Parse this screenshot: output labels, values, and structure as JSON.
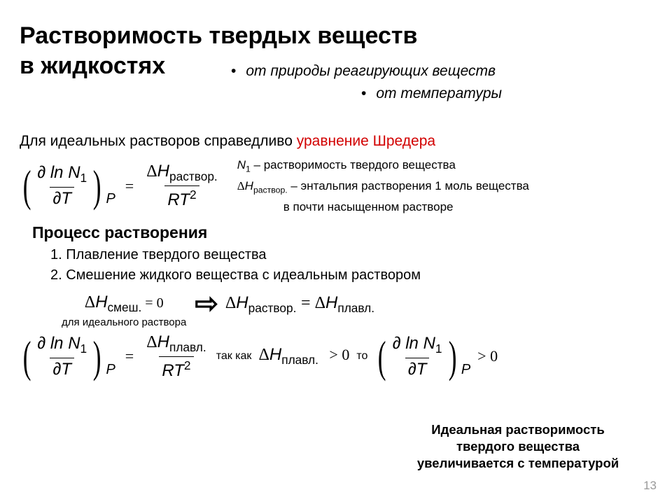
{
  "title_line1": "Растворимость твердых веществ",
  "title_line2": "в жидкостях",
  "bullet1": "от природы реагирующих веществ",
  "bullet2": "от температуры",
  "intro_plain": "Для идеальных растворов справедливо ",
  "intro_red": "уравнение Шредера",
  "eq1": {
    "num": "∂ ln N",
    "num_sub": "1",
    "den": "∂T",
    "rhs_top_delta": "Δ",
    "rhs_top_H": "H",
    "rhs_top_sub": "раствор.",
    "rhs_bot": "RT",
    "rhs_bot_sup": "2"
  },
  "def1_a": "N",
  "def1_sub": "1",
  "def1_b": " – растворимость твердого вещества",
  "def2_a": "ΔH",
  "def2_sub": "раствор.",
  "def2_b": " – энтальпия растворения 1 моль вещества",
  "def2_c": "в почти насыщенном растворе",
  "subheading": "Процесс растворения",
  "step1": "1. Плавление твердого вещества",
  "step2": "2. Смешение жидкого вещества с идеальным раствором",
  "mix_sub": "смеш.",
  "mix_note": "для идеального раствора",
  "eq_zero": " = 0",
  "rast_sub": "раствор.",
  "plav_sub": "плавл.",
  "eq_sign": " = ",
  "eq2_rhs_top_sub": "плавл.",
  "tak_kak": "так как",
  "to_txt": "то",
  "gt0": " > 0",
  "conclusion1": "Идеальная растворимость",
  "conclusion2": "твердого вещества",
  "conclusion3": "увеличивается с температурой",
  "pagenum": "13",
  "colors": {
    "accent_red": "#d20000",
    "text": "#000000",
    "bg": "#ffffff",
    "pagenum": "#9a9a9a"
  }
}
